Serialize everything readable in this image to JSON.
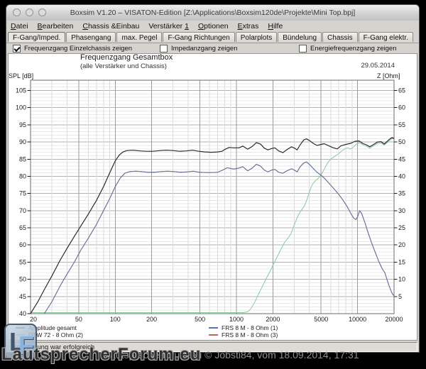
{
  "window": {
    "title": "Boxsim V1.20 – VISATON-Edition [Z:\\Applications\\Boxsim120de\\Projekte\\Mini Top.bpj]",
    "traffic_lights": [
      "close",
      "minimize",
      "zoom"
    ]
  },
  "menu": {
    "items": [
      {
        "label": "Datei",
        "u": 0
      },
      {
        "label": "Bearbeiten",
        "u": 0
      },
      {
        "label": "Chassis &Einbau",
        "u": 0
      },
      {
        "label": "Verstärker 1",
        "u": 11
      },
      {
        "label": "Optionen",
        "u": 0
      },
      {
        "label": "Extras",
        "u": 0
      },
      {
        "label": "Hilfe",
        "u": 0
      }
    ]
  },
  "tabs": {
    "items": [
      {
        "label": "F-Gang/Imped.",
        "active": true
      },
      {
        "label": "Phasengang",
        "active": false
      },
      {
        "label": "max. Pegel",
        "active": false
      },
      {
        "label": "F-Gang Richtungen",
        "active": false
      },
      {
        "label": "Polarplots",
        "active": false
      },
      {
        "label": "Bündelung",
        "active": false
      },
      {
        "label": "Chassis",
        "active": false
      },
      {
        "label": "F-Gang elektr.",
        "active": false
      }
    ]
  },
  "toggles": [
    {
      "label": "Frequenzgang Einzelchassis zeigen",
      "checked": true
    },
    {
      "label": "Impedanzgang zeigen",
      "checked": false
    },
    {
      "label": "Energiefrequenzgang zeigen",
      "checked": false
    }
  ],
  "chart_data": {
    "type": "line",
    "title": "Frequenzgang Gesamtbox",
    "subtitle": "(alle Verstärker und Chassis)",
    "date": "29.05.2014",
    "x_axis": {
      "scale": "log",
      "min": 20,
      "max": 20000,
      "ticks": [
        20,
        50,
        100,
        200,
        500,
        1000,
        2000,
        5000,
        10000,
        20000
      ]
    },
    "y_left": {
      "label": "SPL [dB]",
      "min": 40,
      "max": 108,
      "ticks": [
        40,
        45,
        50,
        55,
        60,
        65,
        70,
        75,
        80,
        85,
        90,
        95,
        100,
        105
      ]
    },
    "y_right": {
      "label": "Z [Ohm]",
      "db_offset": 40,
      "ticks": [
        5,
        10,
        15,
        20,
        25,
        30,
        35,
        40,
        45,
        50,
        55,
        60,
        65
      ]
    },
    "grid": true,
    "legend_position": "bottom",
    "series": [
      {
        "name": "DTW 72 - 8 Ohm (2)",
        "color": "#8bc9a0",
        "points": [
          [
            20,
            40.3
          ],
          [
            400,
            40.3
          ],
          [
            900,
            40.3
          ],
          [
            1150,
            40.3
          ],
          [
            1250,
            40.6
          ],
          [
            1320,
            41.5
          ],
          [
            1400,
            43
          ],
          [
            1500,
            45.2
          ],
          [
            1620,
            47.6
          ],
          [
            1750,
            50
          ],
          [
            1900,
            52.4
          ],
          [
            2050,
            54.8
          ],
          [
            2200,
            57
          ],
          [
            2350,
            59
          ],
          [
            2500,
            60.8
          ],
          [
            2670,
            62
          ],
          [
            2820,
            63.3
          ],
          [
            3000,
            65.8
          ],
          [
            3200,
            68.3
          ],
          [
            3400,
            70
          ],
          [
            3620,
            71.2
          ],
          [
            3800,
            73
          ],
          [
            4000,
            75.4
          ],
          [
            4200,
            77.4
          ],
          [
            4420,
            78.5
          ],
          [
            4700,
            79.3
          ],
          [
            5000,
            80.4
          ],
          [
            5300,
            82
          ],
          [
            5650,
            83.9
          ],
          [
            6000,
            85
          ],
          [
            6400,
            85.7
          ],
          [
            6800,
            86.3
          ],
          [
            7300,
            87.2
          ],
          [
            7800,
            88
          ],
          [
            8300,
            88.3
          ],
          [
            8800,
            88
          ],
          [
            9300,
            88.6
          ],
          [
            9800,
            89.4
          ],
          [
            10300,
            89.8
          ],
          [
            11000,
            89.3
          ],
          [
            11800,
            88.8
          ],
          [
            12600,
            88.2
          ],
          [
            13600,
            88.9
          ],
          [
            14600,
            89.6
          ],
          [
            15600,
            89.7
          ],
          [
            16600,
            89.1
          ],
          [
            17600,
            89.8
          ],
          [
            18600,
            90.6
          ],
          [
            19300,
            91.0
          ],
          [
            20000,
            90.8
          ]
        ]
      },
      {
        "name": "FRS 8 M - 8 Ohm (3)",
        "color": "#c2625c",
        "points_same_as": "FRS 8 M - 8 Ohm (1)"
      },
      {
        "name": "FRS 8 M - 8 Ohm (1)",
        "color": "#5c72a2",
        "points": [
          [
            26,
            40
          ],
          [
            30,
            43.5
          ],
          [
            35,
            48
          ],
          [
            40,
            51.5
          ],
          [
            46,
            55
          ],
          [
            52,
            58.5
          ],
          [
            60,
            62
          ],
          [
            70,
            66
          ],
          [
            80,
            70
          ],
          [
            90,
            73.5
          ],
          [
            100,
            77
          ],
          [
            110,
            79.5
          ],
          [
            120,
            80.9
          ],
          [
            132,
            81.4
          ],
          [
            148,
            81.5
          ],
          [
            165,
            81.4
          ],
          [
            185,
            81.2
          ],
          [
            210,
            81.2
          ],
          [
            240,
            81.4
          ],
          [
            270,
            81.5
          ],
          [
            305,
            81.4
          ],
          [
            345,
            81.2
          ],
          [
            390,
            81.3
          ],
          [
            440,
            81.5
          ],
          [
            495,
            81.2
          ],
          [
            560,
            81.1
          ],
          [
            630,
            81.1
          ],
          [
            700,
            81.2
          ],
          [
            760,
            81.7
          ],
          [
            840,
            82.5
          ],
          [
            950,
            82.1
          ],
          [
            1050,
            82.4
          ],
          [
            1130,
            82.8
          ],
          [
            1240,
            81.6
          ],
          [
            1350,
            82.4
          ],
          [
            1460,
            83.5
          ],
          [
            1580,
            83.0
          ],
          [
            1700,
            81.8
          ],
          [
            1820,
            81.3
          ],
          [
            1950,
            81.8
          ],
          [
            2080,
            82.0
          ],
          [
            2230,
            81.2
          ],
          [
            2420,
            80.9
          ],
          [
            2620,
            81.6
          ],
          [
            2850,
            82.2
          ],
          [
            3020,
            81.8
          ],
          [
            3170,
            81.3
          ],
          [
            3360,
            82.8
          ],
          [
            3600,
            83.9
          ],
          [
            3790,
            84.2
          ],
          [
            4020,
            83.4
          ],
          [
            4300,
            82.3
          ],
          [
            4620,
            81.2
          ],
          [
            5000,
            80.3
          ],
          [
            5400,
            79.2
          ],
          [
            5800,
            78.0
          ],
          [
            6300,
            76.6
          ],
          [
            6900,
            75.0
          ],
          [
            7500,
            73.3
          ],
          [
            8200,
            71.2
          ],
          [
            8800,
            69.2
          ],
          [
            9300,
            67.8
          ],
          [
            9700,
            67.4
          ],
          [
            10050,
            68.4
          ],
          [
            10400,
            70.0
          ],
          [
            10800,
            69.2
          ],
          [
            11500,
            66.5
          ],
          [
            12200,
            63.6
          ],
          [
            13000,
            60.8
          ],
          [
            14000,
            57.8
          ],
          [
            15000,
            55.1
          ],
          [
            16000,
            53.0
          ],
          [
            16800,
            51.9
          ],
          [
            17500,
            49.9
          ],
          [
            18300,
            47.9
          ],
          [
            19000,
            46.4
          ],
          [
            19500,
            45.6
          ],
          [
            20000,
            45.2
          ]
        ]
      },
      {
        "name": "Amplitude gesamt",
        "color": "#2b2b2b",
        "points": [
          [
            20,
            40
          ],
          [
            23,
            43.5
          ],
          [
            26,
            47
          ],
          [
            30,
            51
          ],
          [
            35,
            55.5
          ],
          [
            40,
            59
          ],
          [
            46,
            62.5
          ],
          [
            52,
            65.5
          ],
          [
            60,
            69
          ],
          [
            70,
            73
          ],
          [
            80,
            77
          ],
          [
            90,
            81
          ],
          [
            100,
            84.5
          ],
          [
            108,
            86.2
          ],
          [
            116,
            87.1
          ],
          [
            125,
            87.5
          ],
          [
            140,
            87.6
          ],
          [
            160,
            87.4
          ],
          [
            180,
            87.3
          ],
          [
            205,
            87.3
          ],
          [
            235,
            87.5
          ],
          [
            265,
            87.6
          ],
          [
            300,
            87.5
          ],
          [
            340,
            87.3
          ],
          [
            385,
            87.4
          ],
          [
            435,
            87.6
          ],
          [
            490,
            87.3
          ],
          [
            550,
            87.1
          ],
          [
            620,
            87.0
          ],
          [
            700,
            87.1
          ],
          [
            760,
            87.3
          ],
          [
            800,
            87.8
          ],
          [
            870,
            88.4
          ],
          [
            950,
            88.3
          ],
          [
            1050,
            88.3
          ],
          [
            1130,
            88.8
          ],
          [
            1240,
            87.9
          ],
          [
            1350,
            88.7
          ],
          [
            1460,
            89.8
          ],
          [
            1580,
            89.4
          ],
          [
            1700,
            88.2
          ],
          [
            1820,
            87.7
          ],
          [
            1950,
            88.1
          ],
          [
            2080,
            88.3
          ],
          [
            2230,
            87.4
          ],
          [
            2420,
            86.9
          ],
          [
            2620,
            87.8
          ],
          [
            2850,
            88.6
          ],
          [
            3020,
            88.2
          ],
          [
            3170,
            87.7
          ],
          [
            3360,
            89.2
          ],
          [
            3600,
            90.6
          ],
          [
            3790,
            90.9
          ],
          [
            4020,
            90.4
          ],
          [
            4300,
            89.6
          ],
          [
            4620,
            89.0
          ],
          [
            5000,
            89.3
          ],
          [
            5300,
            89.5
          ],
          [
            5700,
            89.0
          ],
          [
            6200,
            88.4
          ],
          [
            6800,
            88.0
          ],
          [
            7300,
            88.9
          ],
          [
            8000,
            89.3
          ],
          [
            8800,
            89.6
          ],
          [
            9500,
            90.2
          ],
          [
            10300,
            90.3
          ],
          [
            11000,
            89.6
          ],
          [
            11800,
            89.2
          ],
          [
            12600,
            88.6
          ],
          [
            13600,
            89.3
          ],
          [
            14600,
            90.0
          ],
          [
            15600,
            90.1
          ],
          [
            16600,
            89.4
          ],
          [
            17600,
            90.2
          ],
          [
            18600,
            91.0
          ],
          [
            19300,
            91.3
          ],
          [
            20000,
            91.0
          ]
        ]
      }
    ]
  },
  "legend": {
    "left": [
      {
        "label": "Amplitude gesamt",
        "color": "#2b2b2b"
      },
      {
        "label": "DTW 72 - 8 Ohm (2)",
        "color": "#8bc9a0"
      }
    ],
    "right": [
      {
        "label": "FRS 8 M - 8 Ohm (1)",
        "color": "#5c72a2"
      },
      {
        "label": "FRS 8 M - 8 Ohm (3)",
        "color": "#c2625c"
      }
    ]
  },
  "status_bar": {
    "text": "Berechnung war erfolgreich"
  },
  "watermark": {
    "logo_l": "L",
    "logo_f": "F",
    "stylized": "LautsprecherForum.eu",
    "plain": "lautsprecherforum.eu © Jobsti84, vom 18.09.2014, 17:31"
  }
}
